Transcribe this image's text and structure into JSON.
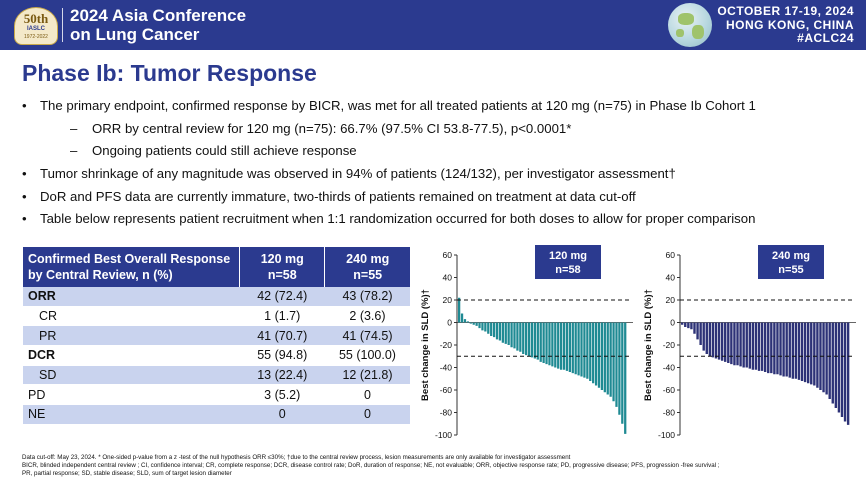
{
  "header": {
    "logo": {
      "big": "50th",
      "org": "IASLC",
      "years": "1972-2022"
    },
    "conference_title_line1": "2024 Asia Conference",
    "conference_title_line2": "on Lung Cancer",
    "date_line": "OCTOBER 17-19, 2024",
    "location_line": "HONG KONG, CHINA",
    "hashtag": "#ACLC24",
    "brand_color": "#2b3a8f"
  },
  "slide_title": "Phase Ib: Tumor Response",
  "bullets": [
    {
      "level": 1,
      "text": "The primary endpoint, confirmed response by BICR, was met for all treated patients at 120 mg (n=75) in Phase Ib Cohort 1"
    },
    {
      "level": 2,
      "text": "ORR by central review for 120 mg (n=75): 66.7% (97.5% CI 53.8-77.5), p<0.0001*"
    },
    {
      "level": 2,
      "text": "Ongoing patients could still achieve response"
    },
    {
      "level": 1,
      "text": "Tumor shrinkage of any magnitude was observed in 94% of patients (124/132), per investigator assessment†"
    },
    {
      "level": 1,
      "text": "DoR and PFS data are currently immature, two-thirds of patients remained on treatment at data cut-off"
    },
    {
      "level": 1,
      "text": "Table below represents patient recruitment when 1:1 randomization occurred for both doses to allow for proper comparison"
    }
  ],
  "table": {
    "headers": [
      {
        "line1": "Confirmed Best Overall Response",
        "line2": "by Central Review, n (%)"
      },
      {
        "line1": "120 mg",
        "line2": "n=58"
      },
      {
        "line1": "240 mg",
        "line2": "n=55"
      }
    ],
    "rows": [
      {
        "label": "ORR",
        "bold": true,
        "indent": false,
        "shade": true,
        "v120": "42 (72.4)",
        "v240": "43 (78.2)"
      },
      {
        "label": "CR",
        "bold": false,
        "indent": true,
        "shade": false,
        "v120": "1 (1.7)",
        "v240": "2 (3.6)"
      },
      {
        "label": "PR",
        "bold": false,
        "indent": true,
        "shade": true,
        "v120": "41 (70.7)",
        "v240": "41 (74.5)"
      },
      {
        "label": "DCR",
        "bold": true,
        "indent": false,
        "shade": false,
        "v120": "55 (94.8)",
        "v240": "55 (100.0)"
      },
      {
        "label": "SD",
        "bold": false,
        "indent": true,
        "shade": true,
        "v120": "13 (22.4)",
        "v240": "12 (21.8)"
      },
      {
        "label": "PD",
        "bold": false,
        "indent": false,
        "shade": false,
        "v120": "3 (5.2)",
        "v240": "0"
      },
      {
        "label": "NE",
        "bold": false,
        "indent": false,
        "shade": true,
        "v120": "0",
        "v240": "0"
      }
    ]
  },
  "chart_data": [
    {
      "type": "bar",
      "title_line1": "120 mg",
      "title_line2": "n=58",
      "ylabel": "Best change in SLD (%)†",
      "ylim": [
        -100,
        60
      ],
      "yticks": [
        60,
        40,
        20,
        0,
        -20,
        -40,
        -60,
        -80,
        -100
      ],
      "reference_lines": [
        20,
        -30
      ],
      "color": "#1f8a93",
      "values": [
        22,
        8,
        3,
        1,
        -1,
        -2,
        -3,
        -5,
        -7,
        -8,
        -10,
        -12,
        -13,
        -15,
        -16,
        -18,
        -19,
        -20,
        -22,
        -23,
        -25,
        -26,
        -28,
        -29,
        -30,
        -31,
        -32,
        -33,
        -35,
        -36,
        -37,
        -38,
        -39,
        -40,
        -41,
        -42,
        -42,
        -43,
        -44,
        -45,
        -46,
        -47,
        -48,
        -49,
        -50,
        -52,
        -54,
        -56,
        -58,
        -60,
        -62,
        -64,
        -66,
        -70,
        -75,
        -82,
        -90,
        -99
      ]
    },
    {
      "type": "bar",
      "title_line1": "240 mg",
      "title_line2": "n=55",
      "ylabel": "Best change in SLD (%)†",
      "ylim": [
        -100,
        60
      ],
      "yticks": [
        60,
        40,
        20,
        0,
        -20,
        -40,
        -60,
        -80,
        -100
      ],
      "reference_lines": [
        20,
        -30
      ],
      "color": "#2d3277",
      "values": [
        -2,
        -4,
        -5,
        -6,
        -10,
        -15,
        -20,
        -25,
        -28,
        -30,
        -31,
        -32,
        -33,
        -34,
        -35,
        -36,
        -37,
        -38,
        -38,
        -39,
        -40,
        -40,
        -41,
        -42,
        -42,
        -43,
        -43,
        -44,
        -45,
        -45,
        -46,
        -46,
        -47,
        -48,
        -48,
        -49,
        -50,
        -50,
        -51,
        -52,
        -53,
        -54,
        -55,
        -56,
        -58,
        -60,
        -62,
        -64,
        -68,
        -72,
        -76,
        -80,
        -84,
        -88,
        -91
      ]
    }
  ],
  "footnotes": {
    "line1": "Data cut-off: May 23, 2024. * One-sided p-value from a z -test of the null hypothesis ORR ≤30%;   †due to the central review process, lesion measurements are only available for investigator assessment",
    "line2": "BICR, blinded independent central review ; CI, confidence interval; CR, complete response; DCR, disease control rate;      DoR, duration of response; NE, not evaluable; ORR, objective response rate; PD, progressive disease; PFS, progression       -free survival ;",
    "line3": "PR, partial response; SD, stable disease; SLD, sum of target lesion diameter"
  }
}
